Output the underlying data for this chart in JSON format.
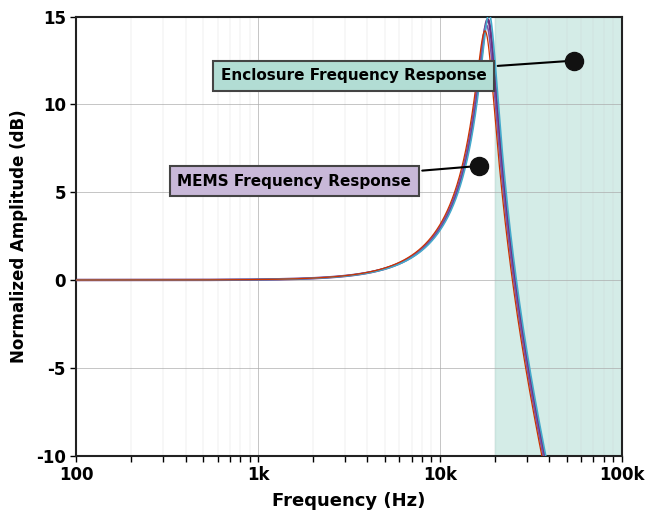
{
  "xlabel": "Frequency (Hz)",
  "ylabel": "Normalized Amplitude (dB)",
  "xlim_log": [
    100,
    100000
  ],
  "ylim": [
    -10,
    15
  ],
  "yticks": [
    -10,
    -5,
    0,
    5,
    10,
    15
  ],
  "xtick_labels": [
    "100",
    "1k",
    "10k",
    "100k"
  ],
  "xtick_vals": [
    100,
    1000,
    10000,
    100000
  ],
  "shaded_region_start": 20000,
  "shaded_region_color": "#b2ddd4",
  "shaded_region_alpha": 0.55,
  "grid_major_color": "#aaaaaa",
  "grid_minor_color": "#cccccc",
  "background_color": "#ffffff",
  "annotation1_text": "Enclosure Frequency Response",
  "annotation1_box_color": "#b2ddd4",
  "annotation1_box_edge": "#444444",
  "annotation2_text": "MEMS Frequency Response",
  "annotation2_box_color": "#c8b8d8",
  "annotation2_box_edge": "#444444",
  "dot_color": "#111111",
  "enc_dot_x": 55000,
  "enc_dot_y": 12.5,
  "mems_dot_x": 16500,
  "mems_dot_y": 6.5,
  "line_params": [
    {
      "f0": 18500,
      "Q": 5.5,
      "color": "#6b3080",
      "lw": 1.8
    },
    {
      "f0": 18200,
      "Q": 5.3,
      "color": "#7755aa",
      "lw": 1.2
    },
    {
      "f0": 18800,
      "Q": 5.7,
      "color": "#44aacc",
      "lw": 1.2
    },
    {
      "f0": 17900,
      "Q": 5.1,
      "color": "#cc3300",
      "lw": 0.9
    }
  ]
}
